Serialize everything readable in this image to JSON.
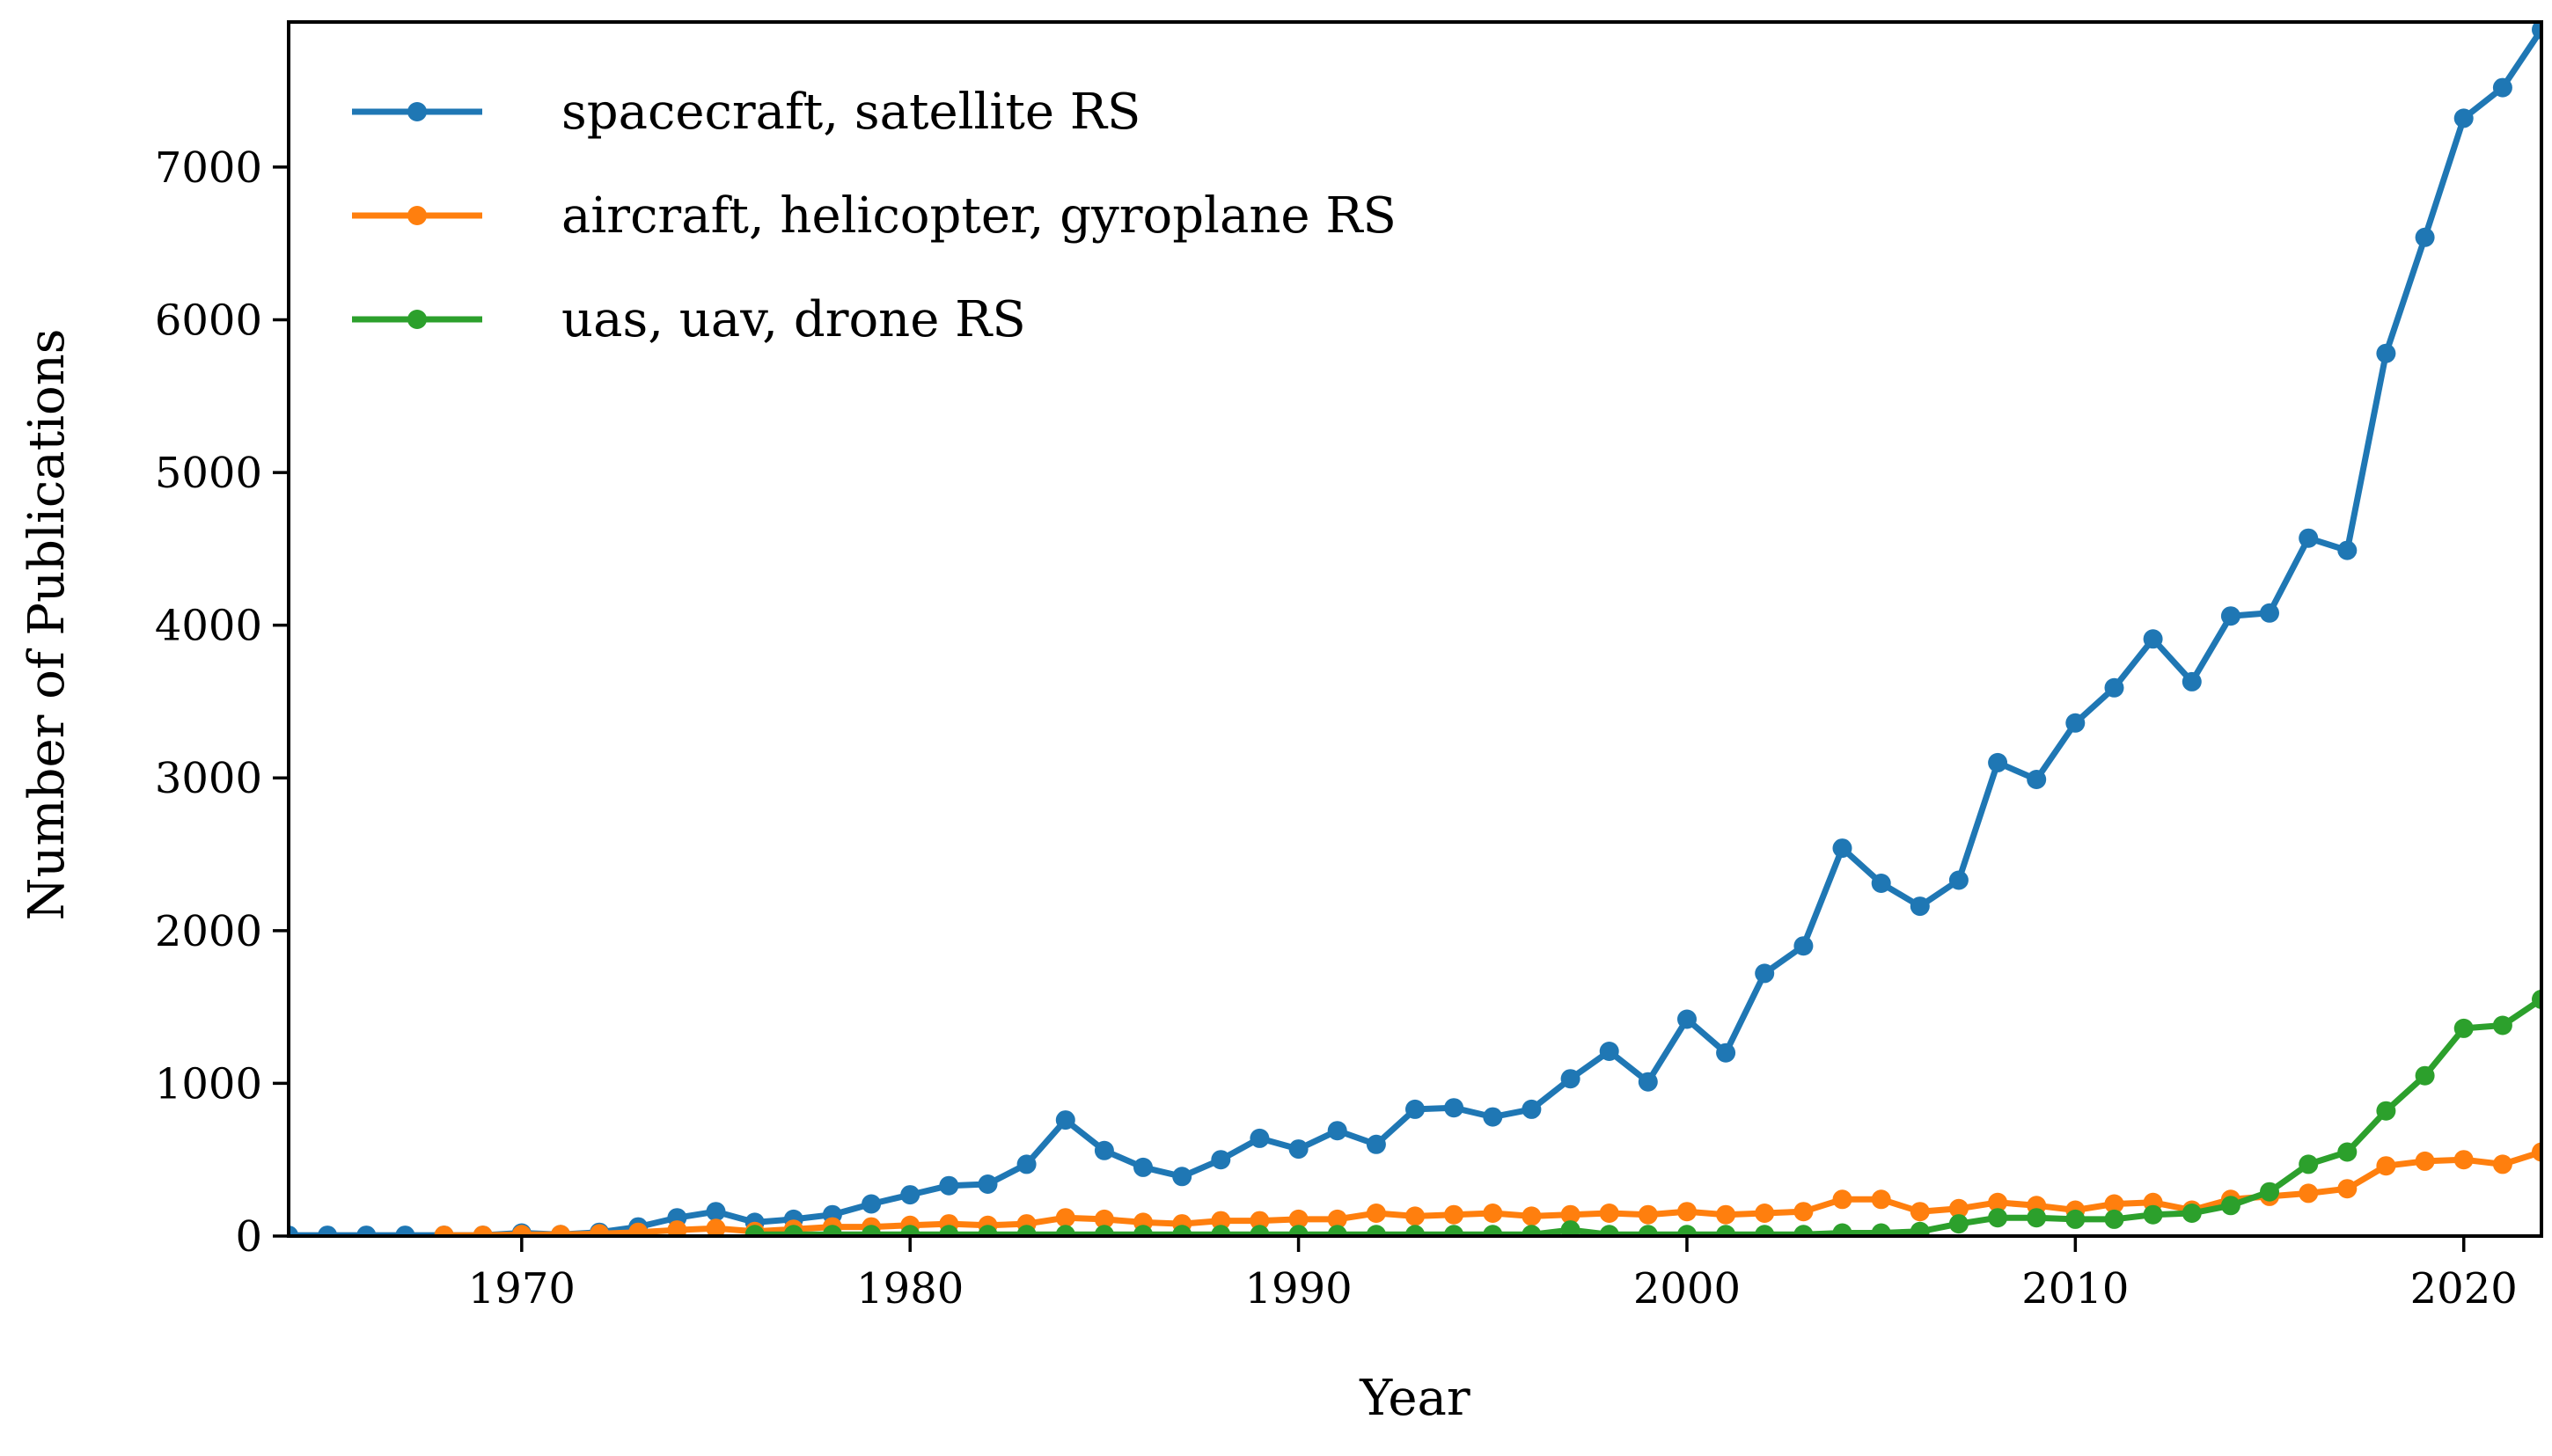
{
  "chart_data": {
    "type": "line",
    "xlabel": "Year",
    "ylabel": "Number of Publications",
    "xlim": [
      1964,
      2022
    ],
    "ylim": [
      0,
      7950
    ],
    "xticks": [
      1970,
      1980,
      1990,
      2000,
      2010,
      2020
    ],
    "yticks": [
      0,
      1000,
      2000,
      3000,
      4000,
      5000,
      6000,
      7000
    ],
    "grid": false,
    "legend_position": "top-left",
    "series": [
      {
        "name": "spacecraft, satellite RS",
        "color": "#1f77b4",
        "x": [
          1964,
          1965,
          1966,
          1967,
          1968,
          1969,
          1970,
          1971,
          1972,
          1973,
          1974,
          1975,
          1976,
          1977,
          1978,
          1979,
          1980,
          1981,
          1982,
          1983,
          1984,
          1985,
          1986,
          1987,
          1988,
          1989,
          1990,
          1991,
          1992,
          1993,
          1994,
          1995,
          1996,
          1997,
          1998,
          1999,
          2000,
          2001,
          2002,
          2003,
          2004,
          2005,
          2006,
          2007,
          2008,
          2009,
          2010,
          2011,
          2012,
          2013,
          2014,
          2015,
          2016,
          2017,
          2018,
          2019,
          2020,
          2021,
          2022
        ],
        "values": [
          5,
          5,
          5,
          5,
          5,
          5,
          20,
          10,
          25,
          60,
          120,
          160,
          90,
          110,
          140,
          210,
          270,
          330,
          340,
          470,
          760,
          560,
          450,
          390,
          500,
          640,
          570,
          690,
          600,
          830,
          840,
          780,
          830,
          1030,
          1210,
          1010,
          1420,
          1200,
          1720,
          1900,
          2540,
          2310,
          2160,
          2330,
          3100,
          2990,
          3360,
          3590,
          3910,
          3630,
          4060,
          4080,
          4570,
          4490,
          5780,
          6540,
          7320,
          7520,
          7900
        ]
      },
      {
        "name": "aircraft, helicopter, gyroplane RS",
        "color": "#ff7f0e",
        "x": [
          1968,
          1969,
          1970,
          1971,
          1972,
          1973,
          1974,
          1975,
          1976,
          1977,
          1978,
          1979,
          1980,
          1981,
          1982,
          1983,
          1984,
          1985,
          1986,
          1987,
          1988,
          1989,
          1990,
          1991,
          1992,
          1993,
          1994,
          1995,
          1996,
          1997,
          1998,
          1999,
          2000,
          2001,
          2002,
          2003,
          2004,
          2005,
          2006,
          2007,
          2008,
          2009,
          2010,
          2011,
          2012,
          2013,
          2014,
          2015,
          2016,
          2017,
          2018,
          2019,
          2020,
          2021,
          2022
        ],
        "values": [
          5,
          5,
          10,
          10,
          15,
          25,
          40,
          50,
          30,
          45,
          60,
          60,
          70,
          80,
          70,
          80,
          120,
          110,
          90,
          80,
          100,
          100,
          110,
          110,
          150,
          130,
          140,
          150,
          130,
          140,
          150,
          140,
          160,
          140,
          150,
          160,
          240,
          240,
          160,
          180,
          220,
          200,
          170,
          210,
          220,
          170,
          240,
          260,
          280,
          310,
          460,
          490,
          500,
          470,
          550
        ]
      },
      {
        "name": "uas, uav, drone RS",
        "color": "#2ca02c",
        "x": [
          1976,
          1977,
          1978,
          1979,
          1980,
          1981,
          1982,
          1983,
          1984,
          1985,
          1986,
          1987,
          1988,
          1989,
          1990,
          1991,
          1992,
          1993,
          1994,
          1995,
          1996,
          1997,
          1998,
          1999,
          2000,
          2001,
          2002,
          2003,
          2004,
          2005,
          2006,
          2007,
          2008,
          2009,
          2010,
          2011,
          2012,
          2013,
          2014,
          2015,
          2016,
          2017,
          2018,
          2019,
          2020,
          2021,
          2022
        ],
        "values": [
          10,
          10,
          10,
          10,
          10,
          10,
          10,
          10,
          10,
          10,
          10,
          10,
          10,
          10,
          10,
          10,
          10,
          10,
          10,
          10,
          10,
          40,
          10,
          10,
          10,
          10,
          10,
          10,
          20,
          20,
          30,
          80,
          120,
          120,
          110,
          110,
          140,
          150,
          200,
          290,
          470,
          550,
          820,
          1050,
          1360,
          1380,
          1550
        ]
      }
    ]
  }
}
